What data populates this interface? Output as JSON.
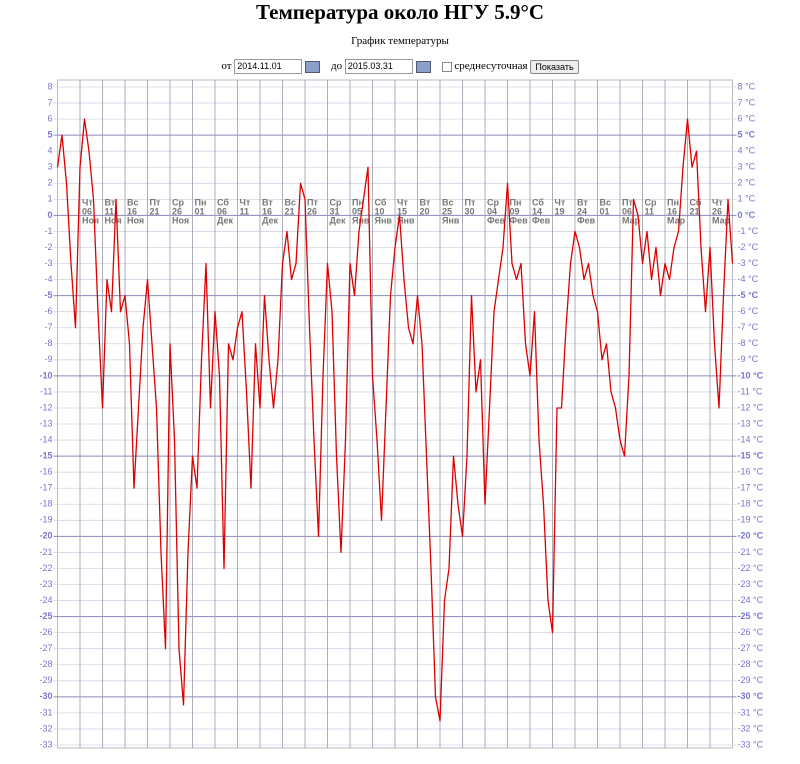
{
  "header": {
    "title": "Температура около НГУ 5.9°C",
    "subtitle": "График температуры"
  },
  "form": {
    "from_label": "от",
    "from_date": "2014.11.01",
    "to_label": "до",
    "to_date": "2015.03.31",
    "checkbox_label": "среднесуточная",
    "button": "Показать"
  },
  "chart_data": {
    "type": "line",
    "x": [
      0,
      1,
      2,
      3,
      4,
      5,
      6,
      7,
      8,
      9,
      10,
      11,
      12,
      13,
      14,
      15,
      16,
      17,
      18,
      19,
      20,
      21,
      22,
      23,
      24,
      25,
      26,
      27,
      28,
      29,
      30,
      31,
      32,
      33,
      34,
      35,
      36,
      37,
      38,
      39,
      40,
      41,
      42,
      43,
      44,
      45,
      46,
      47,
      48,
      49,
      50,
      51,
      52,
      53,
      54,
      55,
      56,
      57,
      58,
      59,
      60,
      61,
      62,
      63,
      64,
      65,
      66,
      67,
      68,
      69,
      70,
      71,
      72,
      73,
      74,
      75,
      76,
      77,
      78,
      79,
      80,
      81,
      82,
      83,
      84,
      85,
      86,
      87,
      88,
      89,
      90,
      91,
      92,
      93,
      94,
      95,
      96,
      97,
      98,
      99,
      100,
      101,
      102,
      103,
      104,
      105,
      106,
      107,
      108,
      109,
      110,
      111,
      112,
      113,
      114,
      115,
      116,
      117,
      118,
      119,
      120,
      121,
      122,
      123,
      124,
      125,
      126,
      127,
      128,
      129,
      130,
      131,
      132,
      133,
      134,
      135,
      136,
      137,
      138,
      139,
      140,
      141,
      142,
      143,
      144,
      145,
      146,
      147,
      148,
      149,
      150
    ],
    "series": [
      {
        "name": "Температура",
        "color": "#dd0000",
        "values": [
          3,
          5,
          2,
          -3,
          -7,
          3,
          6,
          4,
          1,
          -6,
          -12,
          -4,
          -6,
          1,
          -6,
          -5,
          -8,
          -17,
          -12,
          -7,
          -4,
          -8,
          -12,
          -21,
          -27,
          -8,
          -14,
          -27,
          -30.5,
          -21,
          -15,
          -17,
          -9,
          -3,
          -12,
          -6,
          -10,
          -22,
          -8,
          -9,
          -7,
          -6,
          -11,
          -17,
          -8,
          -12,
          -5,
          -9,
          -12,
          -9,
          -3,
          -1,
          -4,
          -3,
          2,
          1,
          -7,
          -14,
          -20,
          -10,
          -3,
          -6,
          -15,
          -21,
          -14,
          -3,
          -5,
          -1,
          1,
          3,
          -10,
          -14,
          -19,
          -12,
          -5,
          -2,
          0,
          -4,
          -7,
          -8,
          -5,
          -8,
          -15,
          -22,
          -30,
          -31.5,
          -24,
          -22,
          -15,
          -18,
          -20,
          -15,
          -5,
          -11,
          -9,
          -18,
          -12,
          -6,
          -4,
          -2,
          2,
          -3,
          -4,
          -3,
          -8,
          -10,
          -6,
          -14,
          -18,
          -24,
          -26,
          -12,
          -12,
          -7,
          -3,
          -1,
          -2,
          -4,
          -3,
          -5,
          -6,
          -9,
          -8,
          -11,
          -12,
          -14,
          -15,
          -10,
          1,
          0,
          -3,
          -1,
          -4,
          -2,
          -5,
          -3,
          -4,
          -2,
          -1,
          3,
          6,
          3,
          4,
          -2,
          -6,
          -2,
          -8,
          -12,
          -5,
          1,
          -3
        ]
      }
    ],
    "xlim": [
      0,
      150
    ],
    "xticks": [
      {
        "value": 5,
        "label": [
          "Чт",
          "06",
          "Ноя"
        ]
      },
      {
        "value": 10,
        "label": [
          "Вт",
          "11",
          "Ноя"
        ]
      },
      {
        "value": 15,
        "label": [
          "Вс",
          "16",
          "Ноя"
        ]
      },
      {
        "value": 20,
        "label": [
          "Пт",
          "21"
        ]
      },
      {
        "value": 25,
        "label": [
          "Ср",
          "26",
          "Ноя"
        ]
      },
      {
        "value": 30,
        "label": [
          "Пн",
          "01"
        ]
      },
      {
        "value": 35,
        "label": [
          "Сб",
          "06",
          "Дек"
        ]
      },
      {
        "value": 40,
        "label": [
          "Чт",
          "11"
        ]
      },
      {
        "value": 45,
        "label": [
          "Вт",
          "16",
          "Дек"
        ]
      },
      {
        "value": 50,
        "label": [
          "Вс",
          "21"
        ]
      },
      {
        "value": 55,
        "label": [
          "Пт",
          "26"
        ]
      },
      {
        "value": 60,
        "label": [
          "Ср",
          "31",
          "Дек"
        ]
      },
      {
        "value": 65,
        "label": [
          "Пн",
          "05",
          "Янв"
        ]
      },
      {
        "value": 70,
        "label": [
          "Сб",
          "10",
          "Янв"
        ]
      },
      {
        "value": 75,
        "label": [
          "Чт",
          "15",
          "Янв"
        ]
      },
      {
        "value": 80,
        "label": [
          "Вт",
          "20"
        ]
      },
      {
        "value": 85,
        "label": [
          "Вс",
          "25",
          "Янв"
        ]
      },
      {
        "value": 90,
        "label": [
          "Пт",
          "30"
        ]
      },
      {
        "value": 95,
        "label": [
          "Ср",
          "04",
          "Фев"
        ]
      },
      {
        "value": 100,
        "label": [
          "Пн",
          "09",
          "Фев"
        ]
      },
      {
        "value": 105,
        "label": [
          "Сб",
          "14",
          "Фев"
        ]
      },
      {
        "value": 110,
        "label": [
          "Чт",
          "19"
        ]
      },
      {
        "value": 115,
        "label": [
          "Вт",
          "24",
          "Фев"
        ]
      },
      {
        "value": 120,
        "label": [
          "Вс",
          "01"
        ]
      },
      {
        "value": 125,
        "label": [
          "Пт",
          "06",
          "Мар"
        ]
      },
      {
        "value": 130,
        "label": [
          "Ср",
          "11"
        ]
      },
      {
        "value": 135,
        "label": [
          "Пн",
          "16",
          "Мар"
        ]
      },
      {
        "value": 140,
        "label": [
          "Сб",
          "21"
        ]
      },
      {
        "value": 145,
        "label": [
          "Чт",
          "26",
          "Мар"
        ]
      }
    ],
    "ylim": [
      -33,
      8
    ],
    "yticks": [
      8,
      7,
      6,
      5,
      4,
      3,
      2,
      1,
      0,
      -1,
      -2,
      -3,
      -4,
      -5,
      -6,
      -7,
      -8,
      -9,
      -10,
      -11,
      -12,
      -13,
      -14,
      -15,
      -16,
      -17,
      -18,
      -19,
      -20,
      -21,
      -22,
      -23,
      -24,
      -25,
      -26,
      -27,
      -28,
      -29,
      -30,
      -31,
      -32,
      -33
    ],
    "y2lim": [
      -33,
      8
    ],
    "y2ticks": [
      {
        "value": 8,
        "label": "8 °C"
      },
      {
        "value": 7,
        "label": "7 °C"
      },
      {
        "value": 6,
        "label": "6 °C"
      },
      {
        "value": 5,
        "label": "5 °C"
      },
      {
        "value": 4,
        "label": "4 °C"
      },
      {
        "value": 3,
        "label": "3 °C"
      },
      {
        "value": 2,
        "label": "2 °C"
      },
      {
        "value": 1,
        "label": "1 °C"
      },
      {
        "value": 0,
        "label": "0 °C"
      },
      {
        "value": -1,
        "label": "-1 °C"
      },
      {
        "value": -2,
        "label": "-2 °C"
      },
      {
        "value": -3,
        "label": "-3 °C"
      },
      {
        "value": -4,
        "label": "-4 °C"
      },
      {
        "value": -5,
        "label": "-5 °C"
      },
      {
        "value": -6,
        "label": "-6 °C"
      },
      {
        "value": -7,
        "label": "-7 °C"
      },
      {
        "value": -8,
        "label": "-8 °C"
      },
      {
        "value": -9,
        "label": "-9 °C"
      },
      {
        "value": -10,
        "label": "-10 °C"
      },
      {
        "value": -11,
        "label": "-11 °C"
      },
      {
        "value": -12,
        "label": "-12 °C"
      },
      {
        "value": -13,
        "label": "-13 °C"
      },
      {
        "value": -14,
        "label": "-14 °C"
      },
      {
        "value": -15,
        "label": "-15 °C"
      },
      {
        "value": -16,
        "label": "-16 °C"
      },
      {
        "value": -17,
        "label": "-17 °C"
      },
      {
        "value": -18,
        "label": "-18 °C"
      },
      {
        "value": -19,
        "label": "-19 °C"
      },
      {
        "value": -20,
        "label": "-20 °C"
      },
      {
        "value": -21,
        "label": "-21 °C"
      },
      {
        "value": -22,
        "label": "-22 °C"
      },
      {
        "value": -23,
        "label": "-23 °C"
      },
      {
        "value": -24,
        "label": "-24 °C"
      },
      {
        "value": -25,
        "label": "-25 °C"
      },
      {
        "value": -26,
        "label": "-26 °C"
      },
      {
        "value": -27,
        "label": "-27 °C"
      },
      {
        "value": -28,
        "label": "-28 °C"
      },
      {
        "value": -29,
        "label": "-29 °C"
      },
      {
        "value": -30,
        "label": "-30 °C"
      },
      {
        "value": -31,
        "label": "-31 °C"
      },
      {
        "value": -32,
        "label": "-32 °C"
      },
      {
        "value": -33,
        "label": "-33 °C"
      }
    ],
    "grid": true
  }
}
